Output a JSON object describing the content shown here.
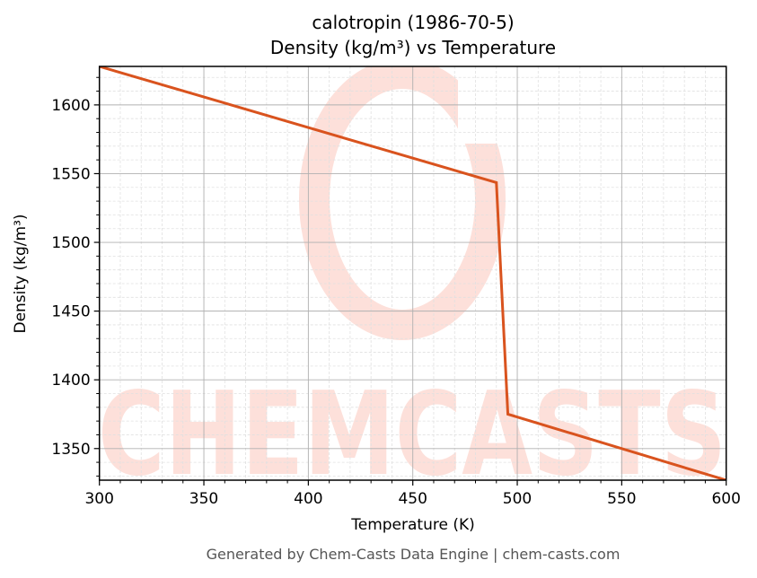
{
  "title": {
    "line1": "calotropin (1986-70-5)",
    "line2": "Density (kg/m³) vs Temperature"
  },
  "axes": {
    "xlabel": "Temperature (K)",
    "ylabel": "Density (kg/m³)",
    "xticks": [
      "300",
      "350",
      "400",
      "450",
      "500",
      "550",
      "600"
    ],
    "yticks": [
      "1350",
      "1400",
      "1450",
      "1500",
      "1550",
      "1600"
    ]
  },
  "footer": "Generated by Chem-Casts Data Engine | chem-casts.com",
  "watermark": {
    "text": "CHEMCASTS",
    "color": "#fde0da"
  },
  "colors": {
    "line": "#d9531e",
    "grid_major": "#b0b0b0",
    "grid_minor": "#e0e0e0"
  },
  "chart_data": {
    "type": "line",
    "title": "calotropin (1986-70-5) Density (kg/m³) vs Temperature",
    "xlabel": "Temperature (K)",
    "ylabel": "Density (kg/m³)",
    "xlim": [
      300,
      600
    ],
    "ylim": [
      1327,
      1628
    ],
    "grid": true,
    "legend": null,
    "series": [
      {
        "name": "Density",
        "x": [
          300,
          490,
          495.5,
          600
        ],
        "y": [
          1628,
          1543.5,
          1375,
          1327
        ]
      }
    ]
  }
}
